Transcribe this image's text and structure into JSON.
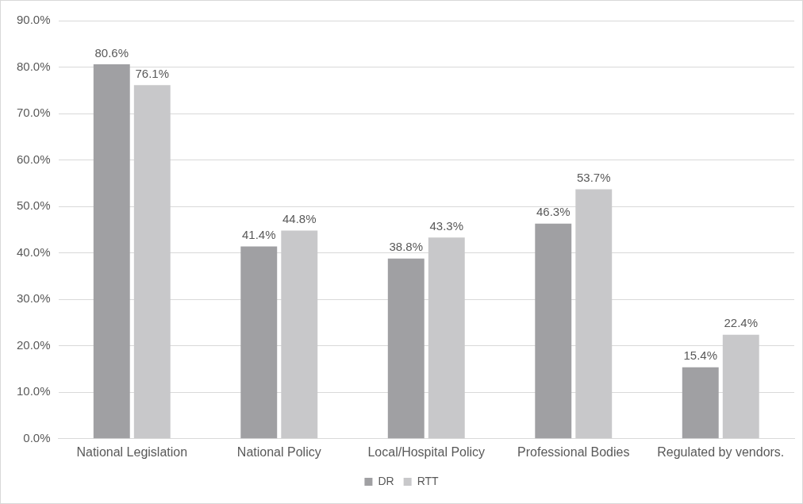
{
  "chart_data": {
    "type": "bar",
    "categories": [
      "National Legislation",
      "National Policy",
      "Local/Hospital Policy",
      "Professional Bodies",
      "Regulated by vendors."
    ],
    "series": [
      {
        "name": "DR",
        "color": "#a0a0a3",
        "values": [
          80.6,
          41.4,
          38.8,
          46.3,
          15.4
        ],
        "value_labels": [
          "80.6%",
          "41.4%",
          "38.8%",
          "46.3%",
          "15.4%"
        ]
      },
      {
        "name": "RTT",
        "color": "#c8c8ca",
        "values": [
          76.1,
          44.8,
          43.3,
          53.7,
          22.4
        ],
        "value_labels": [
          "76.1%",
          "44.8%",
          "43.3%",
          "53.7%",
          "22.4%"
        ]
      }
    ],
    "ylim": [
      0,
      90
    ],
    "yticks": [
      {
        "value": 0,
        "label": "0.0%"
      },
      {
        "value": 10,
        "label": "10.0%"
      },
      {
        "value": 20,
        "label": "20.0%"
      },
      {
        "value": 30,
        "label": "30.0%"
      },
      {
        "value": 40,
        "label": "40.0%"
      },
      {
        "value": 50,
        "label": "50.0%"
      },
      {
        "value": 60,
        "label": "60.0%"
      },
      {
        "value": 70,
        "label": "70.0%"
      },
      {
        "value": 80,
        "label": "80.0%"
      },
      {
        "value": 90,
        "label": "90.0%"
      }
    ],
    "grid": "y",
    "legend": "bottom"
  }
}
